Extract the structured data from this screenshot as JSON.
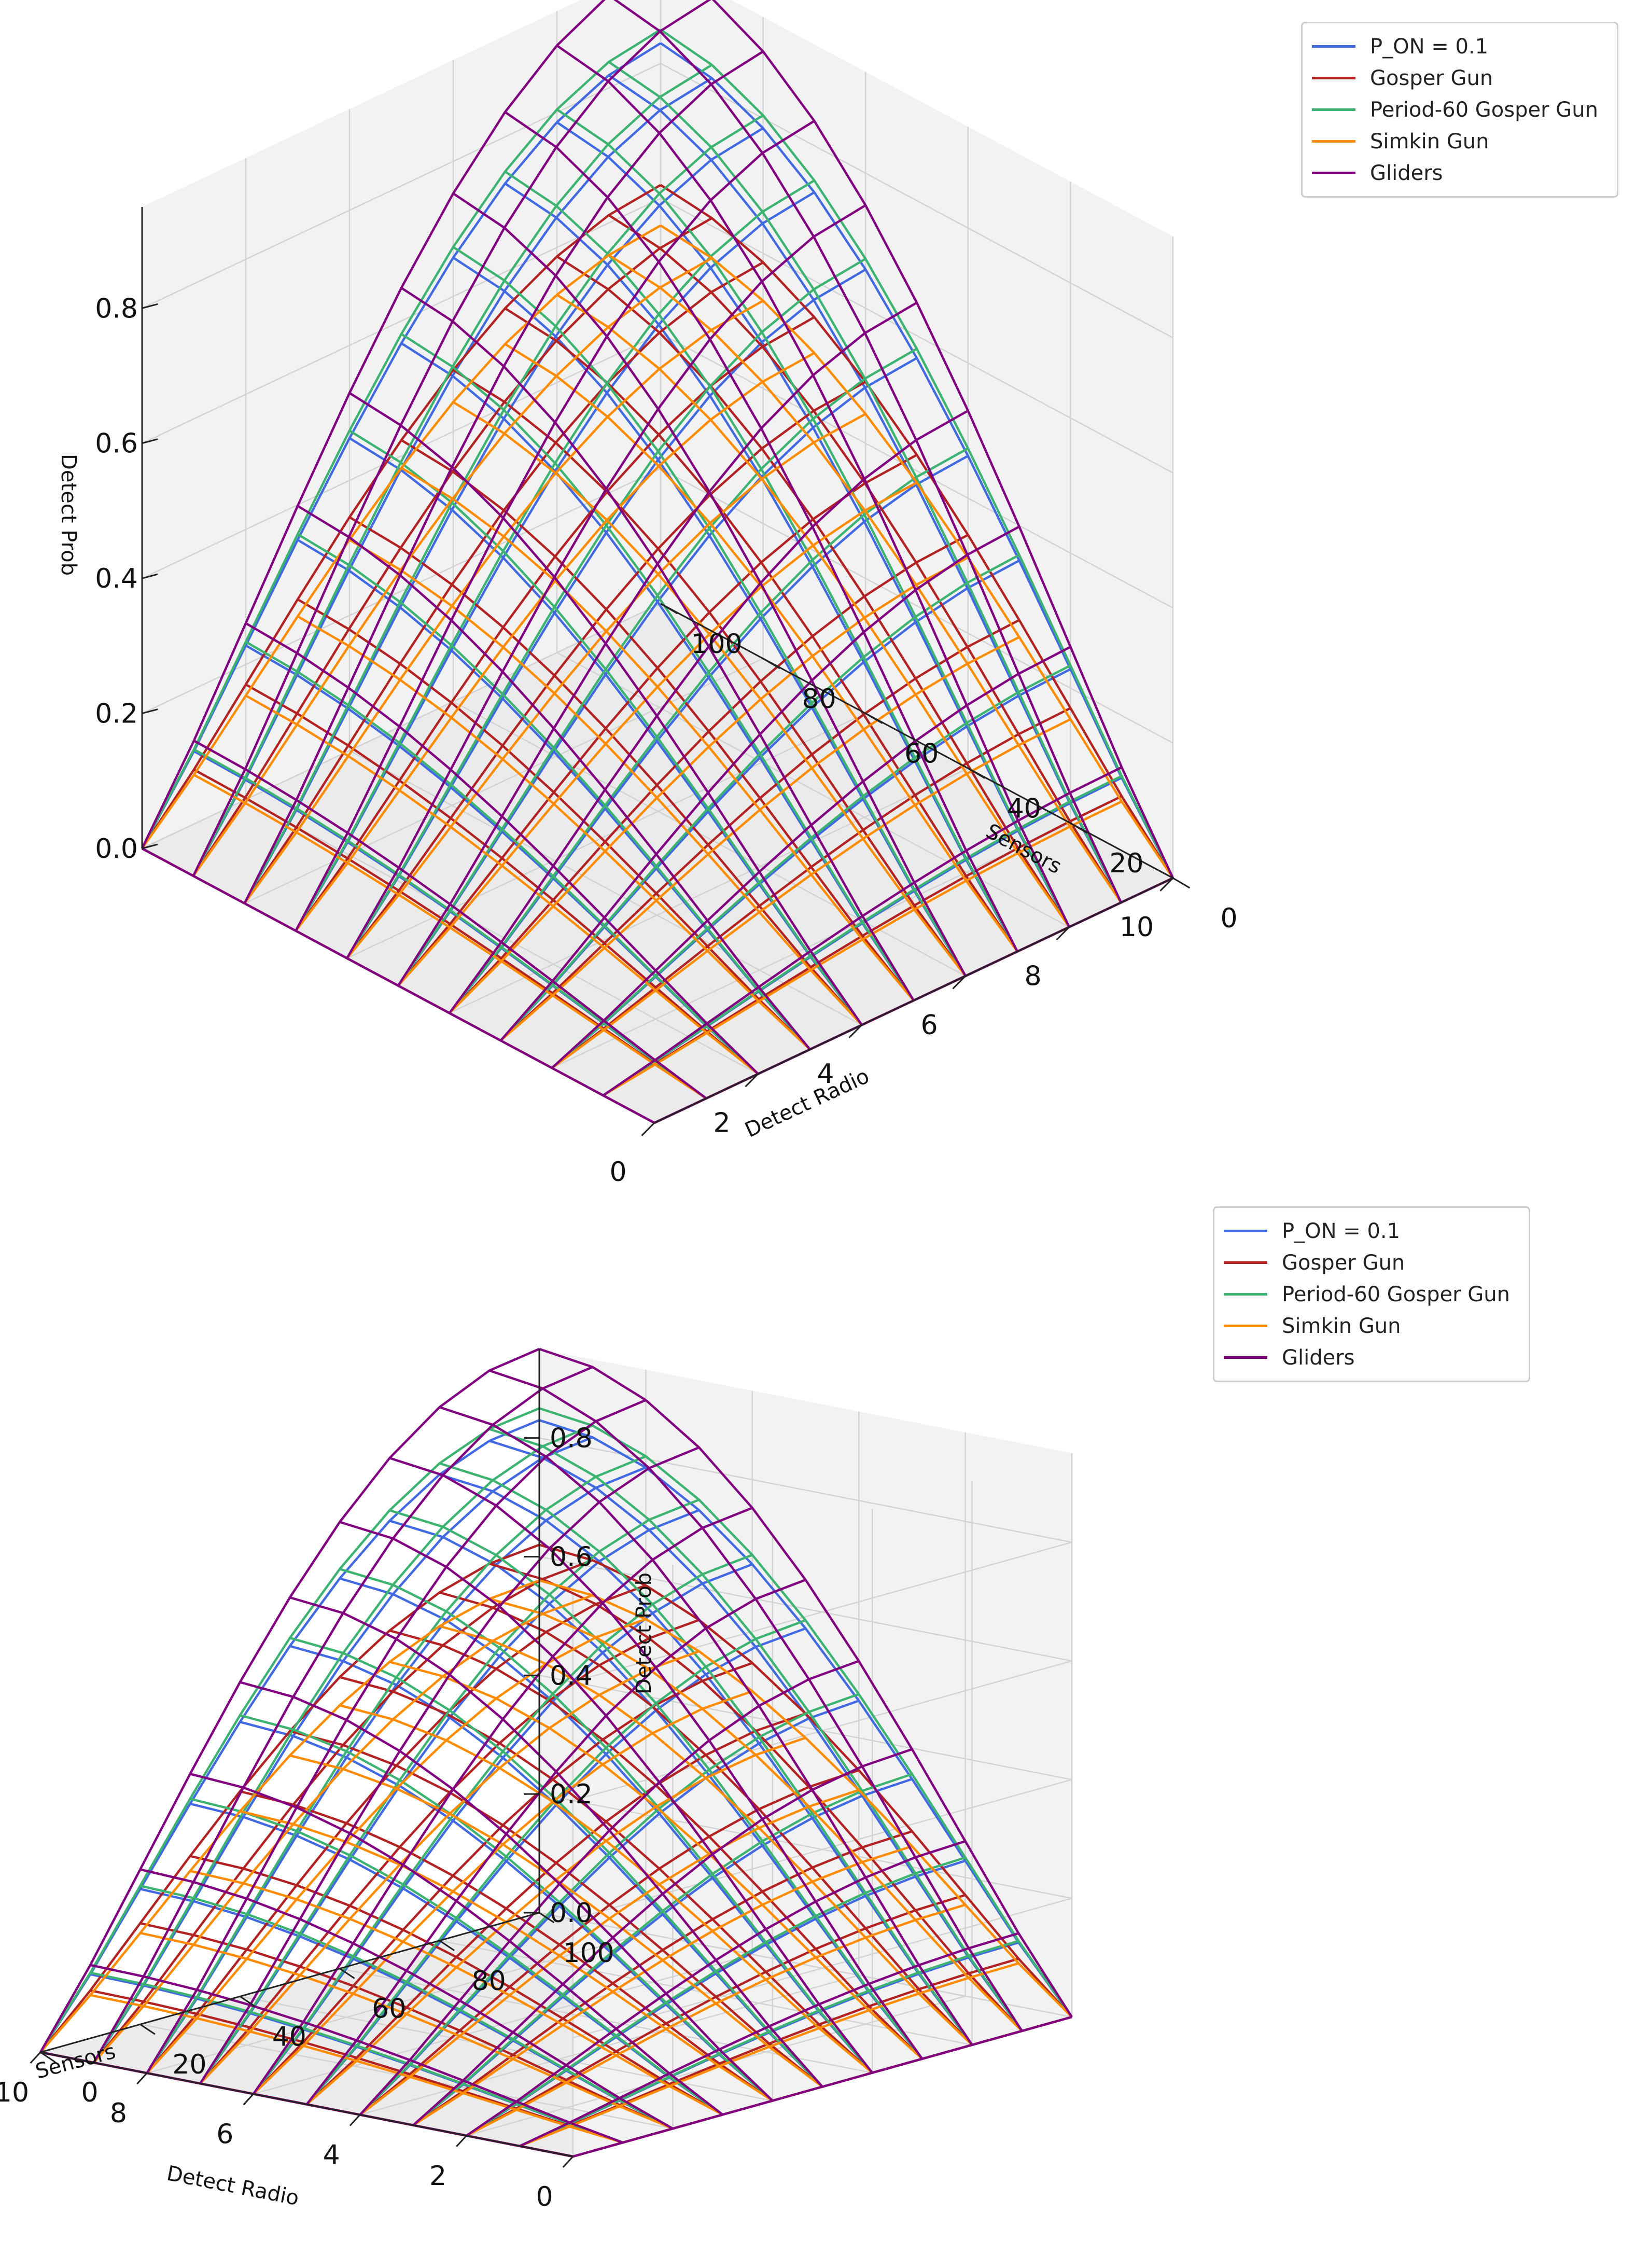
{
  "chart_data": [
    {
      "type": "surface-3d-wireframe",
      "view": "top",
      "title": "",
      "xlabel": "Detect Radio",
      "ylabel": "Sensors",
      "zlabel": "Detect Prob",
      "xlim": [
        0,
        10
      ],
      "ylim": [
        0,
        100
      ],
      "zlim": [
        0,
        0.95
      ],
      "xticks": [
        0,
        2,
        4,
        6,
        8,
        10
      ],
      "yticks": [
        0,
        20,
        40,
        60,
        80,
        100
      ],
      "zticks": [
        0.0,
        0.2,
        0.4,
        0.6,
        0.8
      ],
      "grid": true,
      "legend_position": "top-right",
      "x": [
        0,
        1,
        2,
        3,
        4,
        5,
        6,
        7,
        8,
        9,
        10
      ],
      "y": [
        0,
        10,
        20,
        30,
        40,
        50,
        60,
        70,
        80,
        90,
        100
      ],
      "surface_model": "z = peak * (sin(pi*x/20) * sin(pi*y/200))^1.1",
      "series": [
        {
          "name": "P_ON = 0.1",
          "color": "#4169e1",
          "peak": 0.83
        },
        {
          "name": "Gosper Gun",
          "color": "#b22222",
          "peak": 0.62
        },
        {
          "name": "Period-60 Gosper Gun",
          "color": "#3cb371",
          "peak": 0.85
        },
        {
          "name": "Simkin Gun",
          "color": "#ff8c00",
          "peak": 0.56
        },
        {
          "name": "Gliders",
          "color": "#800080",
          "peak": 0.95
        }
      ],
      "tick_labels": {
        "x": [
          "0",
          "2",
          "4",
          "6",
          "8",
          "10"
        ],
        "y": [
          "0",
          "20",
          "40",
          "60",
          "80",
          "100"
        ],
        "z": [
          "0.0",
          "0.2",
          "0.4",
          "0.6",
          "0.8"
        ]
      }
    },
    {
      "type": "surface-3d-wireframe",
      "view": "side",
      "title": "",
      "xlabel": "Detect Radio",
      "ylabel": "Sensors",
      "zlabel": "Detect Prob",
      "xlim": [
        0,
        10
      ],
      "ylim": [
        0,
        100
      ],
      "zlim": [
        0,
        0.95
      ],
      "xticks": [
        0,
        2,
        4,
        6,
        8,
        10
      ],
      "yticks": [
        0,
        20,
        40,
        60,
        80,
        100
      ],
      "zticks": [
        0.0,
        0.2,
        0.4,
        0.6,
        0.8
      ],
      "grid": true,
      "legend_position": "top-right",
      "x": [
        0,
        1,
        2,
        3,
        4,
        5,
        6,
        7,
        8,
        9,
        10
      ],
      "y": [
        0,
        10,
        20,
        30,
        40,
        50,
        60,
        70,
        80,
        90,
        100
      ],
      "surface_model": "z = peak * (sin(pi*x/20) * sin(pi*y/200))^1.1",
      "series": [
        {
          "name": "P_ON = 0.1",
          "color": "#4169e1",
          "peak": 0.83
        },
        {
          "name": "Gosper Gun",
          "color": "#b22222",
          "peak": 0.62
        },
        {
          "name": "Period-60 Gosper Gun",
          "color": "#3cb371",
          "peak": 0.85
        },
        {
          "name": "Simkin Gun",
          "color": "#ff8c00",
          "peak": 0.56
        },
        {
          "name": "Gliders",
          "color": "#800080",
          "peak": 0.95
        }
      ],
      "tick_labels": {
        "x": [
          "0",
          "2",
          "4",
          "6",
          "8",
          "10"
        ],
        "y": [
          "0",
          "20",
          "40",
          "60",
          "80",
          "100"
        ],
        "z": [
          "0.0",
          "0.2",
          "0.4",
          "0.6",
          "0.8"
        ]
      }
    }
  ]
}
